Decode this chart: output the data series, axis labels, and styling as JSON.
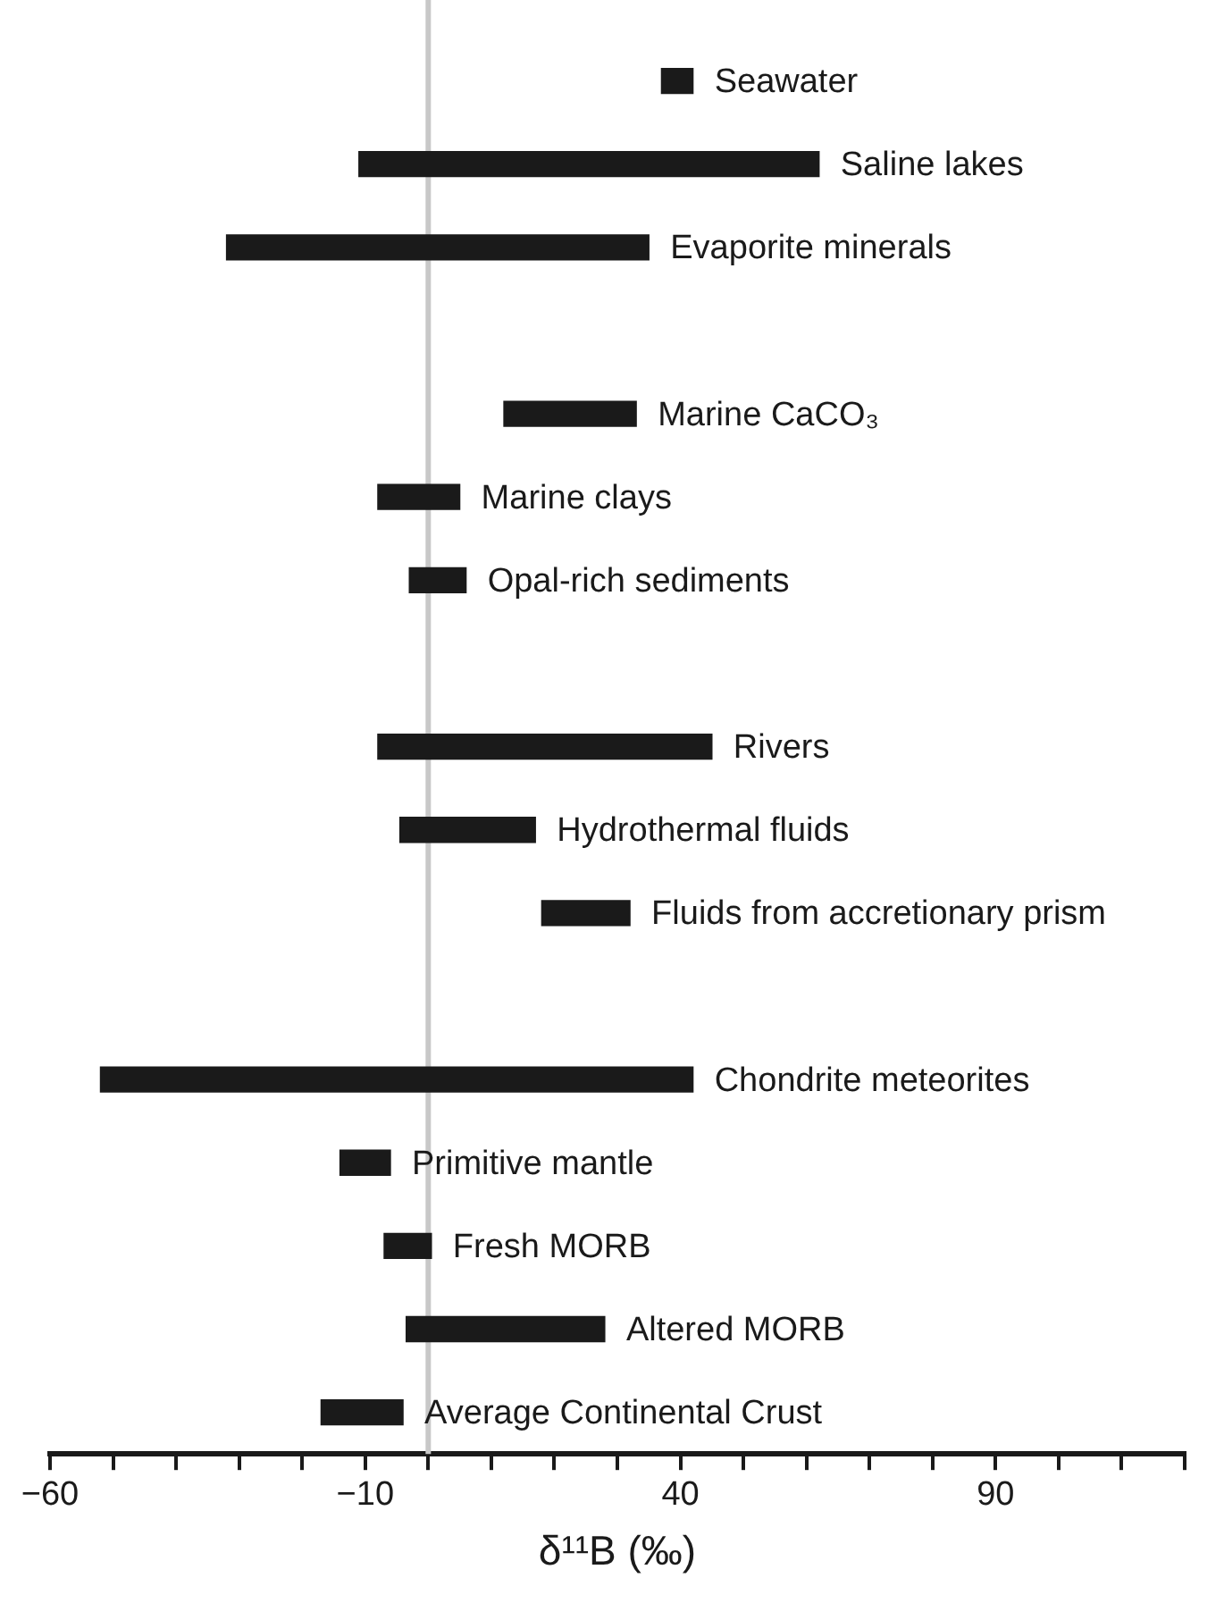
{
  "chart_data": {
    "type": "bar",
    "orientation": "horizontal",
    "xlabel": "δ¹¹B (‰)",
    "categories": [
      "Seawater",
      "Saline lakes",
      "Evaporite minerals",
      null,
      "Marine CaCO₃",
      "Marine clays",
      "Opal-rich sediments",
      null,
      "Rivers",
      "Hydrothermal fluids",
      "Fluids from accretionary prism",
      null,
      "Chondrite meteorites",
      "Primitive mantle",
      "Fresh MORB",
      "Altered MORB",
      "Average Continental Crust"
    ],
    "base": [
      37,
      -11,
      -32,
      null,
      12,
      -8,
      -3,
      null,
      -8,
      -4.5,
      18,
      null,
      -52,
      -14,
      -7,
      -3.5,
      -17
    ],
    "values": [
      5,
      73,
      67,
      null,
      21,
      13,
      9,
      null,
      53,
      21.5,
      14,
      null,
      94,
      8,
      7.5,
      31.5,
      13
    ],
    "color": "#1a1a1a",
    "xlim": [
      -60,
      120
    ],
    "xticks": [
      -60,
      {
        "value": -50,
        "label": null
      },
      {
        "value": -40,
        "label": null
      },
      {
        "value": -30,
        "label": null
      },
      {
        "value": -20,
        "label": null
      },
      -10,
      {
        "value": 0,
        "label": null
      },
      {
        "value": 10,
        "label": null
      },
      {
        "value": 20,
        "label": null
      },
      {
        "value": 30,
        "label": null
      },
      40,
      {
        "value": 50,
        "label": null
      },
      {
        "value": 60,
        "label": null
      },
      {
        "value": 70,
        "label": null
      },
      {
        "value": 80,
        "label": null
      },
      90,
      {
        "value": 100,
        "label": null
      },
      {
        "value": 110,
        "label": null
      },
      {
        "value": 120,
        "label": null
      }
    ],
    "ref_lines": [
      {
        "axis": "x",
        "value": 0,
        "label": null,
        "color": "#c8c8c8"
      }
    ],
    "tick_labels": "x",
    "grid": false,
    "legend": false
  }
}
